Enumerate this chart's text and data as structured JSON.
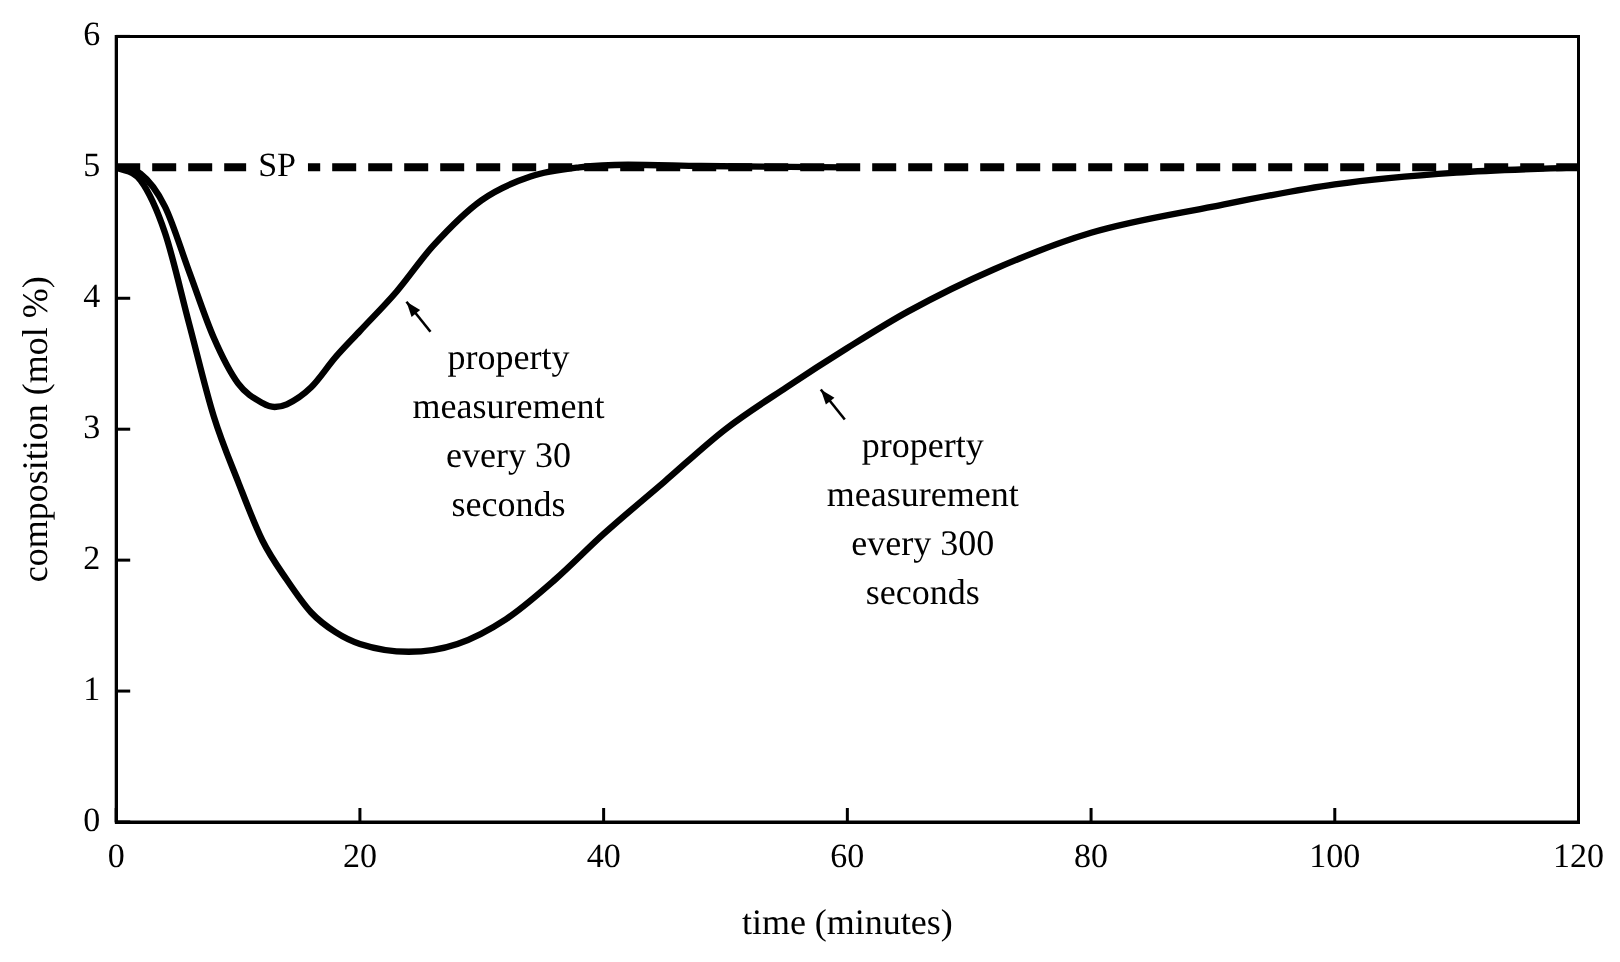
{
  "chart_data": {
    "type": "line",
    "xlabel": "time (minutes)",
    "ylabel": "composition (mol %)",
    "xlim": [
      0,
      120
    ],
    "xticks": [
      0,
      20,
      40,
      60,
      80,
      100,
      120
    ],
    "ylim": [
      0,
      6
    ],
    "yticks": [
      0,
      1,
      2,
      3,
      4,
      5,
      6
    ],
    "grid": false,
    "legend": false,
    "marker": "none",
    "line_style": "solid",
    "ref_lines": [
      {
        "axis": "y",
        "value": 5,
        "label": "SP",
        "color": "#000000",
        "line_style": "dashed"
      }
    ],
    "annotations": [
      {
        "text": "property\nmeasurement\nevery 30\nseconds",
        "x": 23,
        "y": 4.05
      },
      {
        "text": "property\nmeasurement\nevery 300\nseconds",
        "x": 57,
        "y": 3.38
      }
    ],
    "series": [
      {
        "color": "#000000",
        "x": [
          0,
          2,
          4,
          6,
          8,
          10,
          12,
          13,
          14,
          16,
          18,
          20,
          23,
          26,
          30,
          34,
          38,
          42,
          48,
          60
        ],
        "values": [
          5,
          4.95,
          4.7,
          4.2,
          3.7,
          3.35,
          3.2,
          3.17,
          3.19,
          3.32,
          3.55,
          3.75,
          4.05,
          4.4,
          4.75,
          4.93,
          5.0,
          5.02,
          5.01,
          5.0
        ]
      },
      {
        "color": "#000000",
        "x": [
          0,
          2,
          4,
          6,
          8,
          10,
          12,
          14,
          16,
          18,
          20,
          24,
          28,
          32,
          36,
          40,
          45,
          50,
          55,
          60,
          65,
          72,
          80,
          90,
          100,
          110,
          120
        ],
        "values": [
          5,
          4.9,
          4.5,
          3.8,
          3.1,
          2.6,
          2.15,
          1.85,
          1.6,
          1.45,
          1.36,
          1.3,
          1.36,
          1.55,
          1.85,
          2.2,
          2.6,
          3.0,
          3.32,
          3.62,
          3.9,
          4.22,
          4.5,
          4.7,
          4.87,
          4.96,
          5.0
        ]
      }
    ]
  }
}
